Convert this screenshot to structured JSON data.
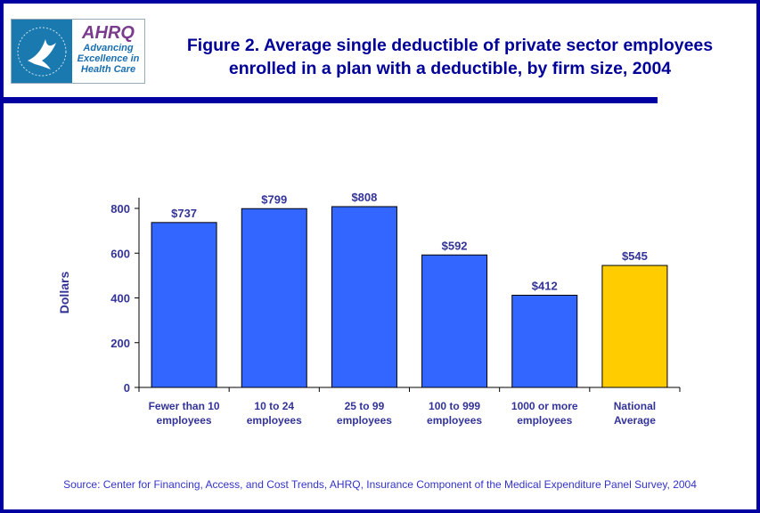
{
  "logo": {
    "agency": "AHRQ",
    "tagline": [
      "Advancing",
      "Excellence in",
      "Health Care"
    ],
    "seal_text": "DEPARTMENT OF HEALTH & HUMAN SERVICES USA"
  },
  "title_lines": [
    "Figure 2. Average single deductible of private sector employees",
    "enrolled in a plan with a deductible, by firm size, 2004"
  ],
  "source": "Source: Center for Financing, Access, and Cost Trends, AHRQ, Insurance Component of the Medical Expenditure Panel Survey, 2004",
  "colors": {
    "bar": "#3366ff",
    "highlight": "#ffcc00",
    "text": "#333399",
    "frame": "#0000a0"
  },
  "chart_data": {
    "type": "bar",
    "title": "Figure 2. Average single deductible of private sector employees enrolled in a plan with a deductible, by firm size, 2004",
    "ylabel": "Dollars",
    "xlabel": "",
    "ylim": [
      0,
      850
    ],
    "yticks": [
      0,
      200,
      400,
      600,
      800
    ],
    "grid": false,
    "categories": [
      [
        "Fewer than 10",
        "employees"
      ],
      [
        "10 to 24",
        "employees"
      ],
      [
        "25 to 99",
        "employees"
      ],
      [
        "100 to 999",
        "employees"
      ],
      [
        "1000 or more",
        "employees"
      ],
      [
        "National",
        "Average"
      ]
    ],
    "values": [
      737,
      799,
      808,
      592,
      412,
      545
    ],
    "data_labels": [
      "$737",
      "$799",
      "$808",
      "$592",
      "$412",
      "$545"
    ],
    "highlighted_category": "National Average"
  }
}
